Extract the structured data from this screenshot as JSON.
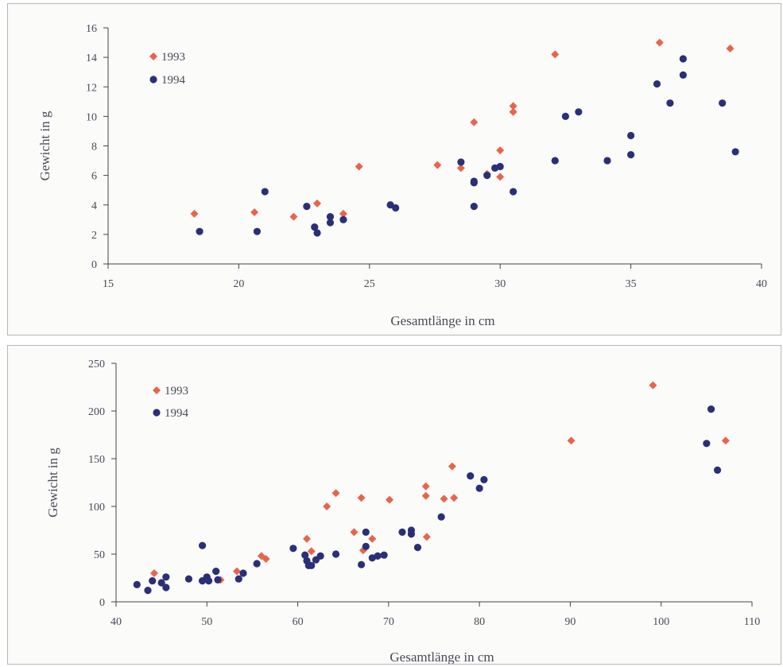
{
  "colors": {
    "series_1993": "#e8644a",
    "series_1994": "#2a2f78",
    "axis": "#444444",
    "text": "#4a4a5a"
  },
  "chart_data": [
    {
      "type": "scatter",
      "xlabel": "Gesamtlänge in cm",
      "ylabel": "Gewicht in g",
      "xlim": [
        15,
        40
      ],
      "ylim": [
        0,
        16
      ],
      "xticks": [
        15,
        20,
        25,
        30,
        35,
        40
      ],
      "yticks": [
        0,
        2,
        4,
        6,
        8,
        10,
        12,
        14,
        16
      ],
      "grid": false,
      "legend": "top-left",
      "series": [
        {
          "name": "1993",
          "marker": "diamond",
          "color": "#e8644a",
          "x": [
            18.3,
            20.6,
            22.1,
            23.0,
            24.0,
            24.6,
            27.6,
            28.5,
            29.0,
            29.5,
            30.0,
            30.0,
            30.5,
            30.5,
            32.1,
            36.1,
            38.8
          ],
          "y": [
            3.4,
            3.5,
            3.2,
            4.1,
            3.4,
            6.6,
            6.7,
            6.5,
            9.6,
            6.1,
            7.7,
            5.9,
            10.7,
            10.3,
            14.2,
            15.0,
            14.6
          ]
        },
        {
          "name": "1994",
          "marker": "circle",
          "color": "#2a2f78",
          "x": [
            18.5,
            20.7,
            21.0,
            22.6,
            22.9,
            23.0,
            23.5,
            23.5,
            24.0,
            25.8,
            26.0,
            28.5,
            29.0,
            29.0,
            29.0,
            29.5,
            29.8,
            30.0,
            30.5,
            32.1,
            32.5,
            33.0,
            34.1,
            35.0,
            35.0,
            36.0,
            36.5,
            37.0,
            37.0,
            38.5,
            39.0
          ],
          "y": [
            2.2,
            2.2,
            4.9,
            3.9,
            2.5,
            2.1,
            3.2,
            2.8,
            3.0,
            4.0,
            3.8,
            6.9,
            5.5,
            5.6,
            3.9,
            6.0,
            6.5,
            6.6,
            4.9,
            7.0,
            10.0,
            10.3,
            7.0,
            7.4,
            8.7,
            12.2,
            10.9,
            12.8,
            13.9,
            10.9,
            7.6
          ]
        }
      ]
    },
    {
      "type": "scatter",
      "xlabel": "Gesamtlänge in cm",
      "ylabel": "Gewicht in g",
      "xlim": [
        40,
        110
      ],
      "ylim": [
        0,
        250
      ],
      "xticks": [
        40,
        50,
        60,
        70,
        80,
        90,
        100,
        110
      ],
      "yticks": [
        0,
        50,
        100,
        150,
        200,
        250
      ],
      "grid": false,
      "legend": "top-left",
      "series": [
        {
          "name": "1993",
          "marker": "diamond",
          "color": "#e8644a",
          "x": [
            44.2,
            51.5,
            53.3,
            56.0,
            56.5,
            61.0,
            61.5,
            63.2,
            64.2,
            66.2,
            67.0,
            67.2,
            68.2,
            70.1,
            74.1,
            74.1,
            74.2,
            76.1,
            77.0,
            77.2,
            90.1,
            99.1,
            107.1
          ],
          "y": [
            30,
            23,
            32,
            48,
            45,
            66,
            53,
            100,
            114,
            73,
            109,
            54,
            66,
            107,
            121,
            111,
            68,
            108,
            142,
            109,
            169,
            227,
            169
          ]
        },
        {
          "name": "1994",
          "marker": "circle",
          "color": "#2a2f78",
          "x": [
            42.3,
            43.5,
            44.0,
            45.0,
            45.5,
            45.5,
            48.0,
            49.5,
            49.5,
            50.0,
            50.2,
            51.0,
            51.2,
            53.5,
            54.0,
            55.5,
            59.5,
            60.8,
            61.0,
            61.2,
            61.5,
            62.0,
            62.5,
            64.2,
            67.0,
            67.5,
            67.5,
            68.2,
            68.8,
            69.5,
            71.5,
            72.5,
            72.5,
            73.2,
            75.8,
            79.0,
            80.0,
            80.5,
            105.0,
            105.5,
            106.2
          ],
          "y": [
            18,
            12,
            22,
            20,
            15,
            26,
            24,
            22,
            59,
            26,
            22,
            32,
            23,
            24,
            30,
            40,
            56,
            49,
            43,
            38,
            38,
            44,
            48,
            50,
            39,
            58,
            73,
            46,
            48,
            49,
            73,
            71,
            75,
            57,
            89,
            132,
            119,
            128,
            166,
            202,
            138
          ]
        }
      ]
    }
  ]
}
